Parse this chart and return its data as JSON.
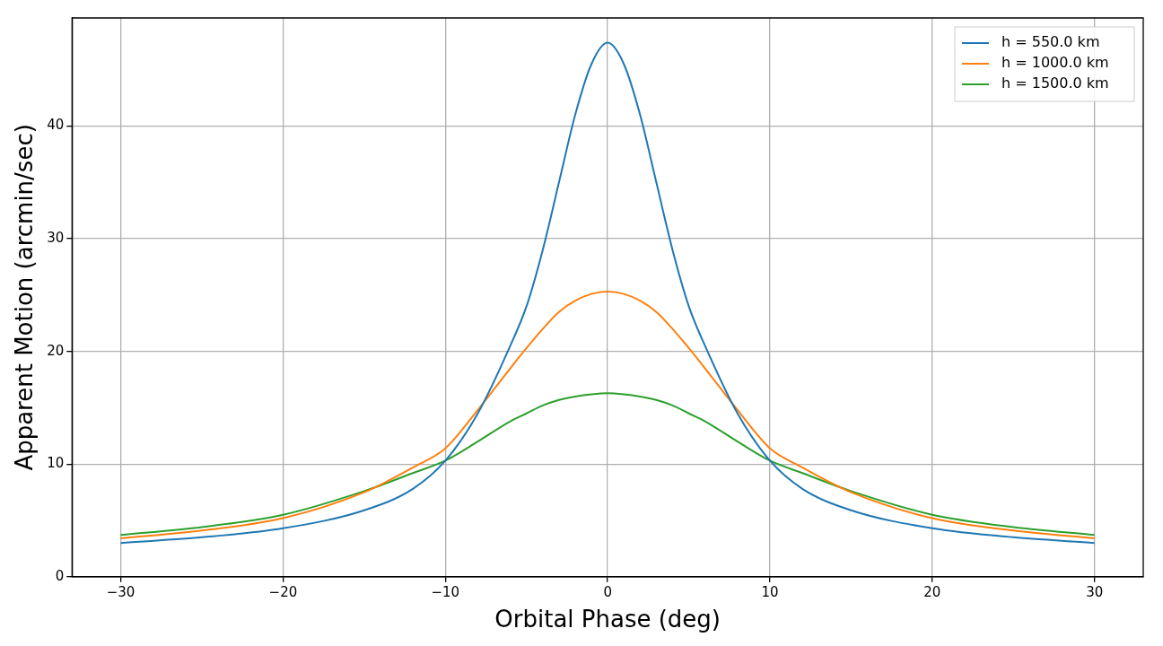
{
  "chart_data": {
    "type": "line",
    "xlabel": "Orbital Phase (deg)",
    "ylabel": "Apparent Motion (arcmin/sec)",
    "x": [
      -30,
      -25,
      -20,
      -15,
      -12,
      -10,
      -8,
      -6,
      -5,
      -4,
      -3,
      -2,
      -1,
      0,
      1,
      2,
      3,
      4,
      5,
      6,
      8,
      10,
      12,
      15,
      20,
      25,
      30
    ],
    "series": [
      {
        "name": "h = 550.0 km",
        "color": "#1f77b4",
        "values": [
          3.0,
          3.5,
          4.3,
          5.9,
          7.8,
          10.3,
          14.5,
          20.5,
          24,
          29,
          35,
          41,
          45.5,
          47.4,
          45.5,
          41,
          35,
          29,
          24,
          20.5,
          14.5,
          10.3,
          7.8,
          5.9,
          4.3,
          3.5,
          3.0
        ]
      },
      {
        "name": "h = 1000.0 km",
        "color": "#ff7f0e",
        "values": [
          3.4,
          4.1,
          5.2,
          7.5,
          9.7,
          11.4,
          14.8,
          18.5,
          20.3,
          22,
          23.5,
          24.5,
          25.1,
          25.3,
          25.1,
          24.5,
          23.5,
          22,
          20.3,
          18.5,
          14.8,
          11.4,
          9.7,
          7.5,
          5.2,
          4.1,
          3.4
        ]
      },
      {
        "name": "h = 1500.0 km",
        "color": "#2ca02c",
        "values": [
          3.7,
          4.4,
          5.5,
          7.6,
          9.2,
          10.3,
          12,
          13.8,
          14.5,
          15.2,
          15.7,
          16.0,
          16.2,
          16.3,
          16.2,
          16.0,
          15.7,
          15.2,
          14.5,
          13.8,
          12,
          10.3,
          9.2,
          7.6,
          5.5,
          4.4,
          3.7
        ]
      }
    ],
    "xlim": [
      -33,
      33
    ],
    "ylim": [
      0,
      49.6
    ],
    "xticks": [
      {
        "value": -30,
        "label": "−30"
      },
      {
        "value": -20,
        "label": "−20"
      },
      {
        "value": -10,
        "label": "−10"
      },
      0,
      10,
      20,
      30
    ],
    "yticks": [
      0,
      10,
      20,
      30,
      40
    ],
    "grid": true,
    "legend": "top right",
    "marker": "none",
    "line_style": "solid"
  }
}
